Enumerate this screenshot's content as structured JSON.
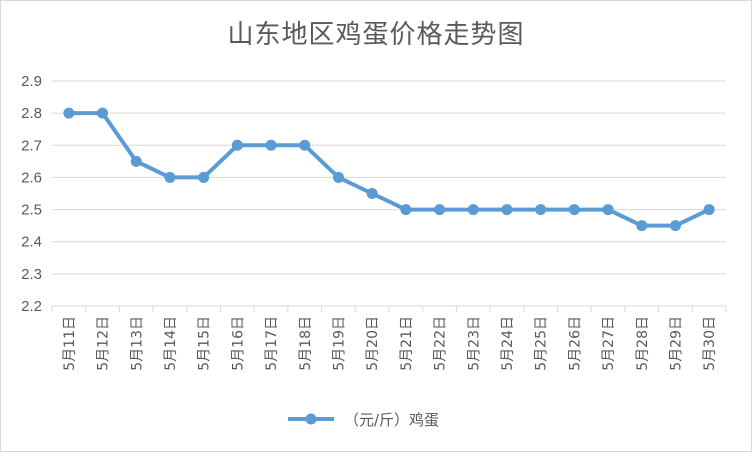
{
  "chart_data": {
    "type": "line",
    "title": "山东地区鸡蛋价格走势图",
    "xlabel": "",
    "ylabel": "",
    "ylim": [
      2.2,
      2.9
    ],
    "yticks": [
      "2.2",
      "2.3",
      "2.4",
      "2.5",
      "2.6",
      "2.7",
      "2.8",
      "2.9"
    ],
    "grid": true,
    "legend_position": "bottom",
    "categories": [
      "5月11日",
      "5月12日",
      "5月13日",
      "5月14日",
      "5月15日",
      "5月16日",
      "5月17日",
      "5月18日",
      "5月19日",
      "5月20日",
      "5月21日",
      "5月22日",
      "5月23日",
      "5月24日",
      "5月25日",
      "5月26日",
      "5月27日",
      "5月28日",
      "5月29日",
      "5月30日"
    ],
    "series": [
      {
        "name": "（元/斤）鸡蛋",
        "color": "#5B9BD5",
        "values": [
          2.8,
          2.8,
          2.65,
          2.6,
          2.6,
          2.7,
          2.7,
          2.7,
          2.6,
          2.55,
          2.5,
          2.5,
          2.5,
          2.5,
          2.5,
          2.5,
          2.5,
          2.45,
          2.45,
          2.5
        ]
      }
    ]
  }
}
